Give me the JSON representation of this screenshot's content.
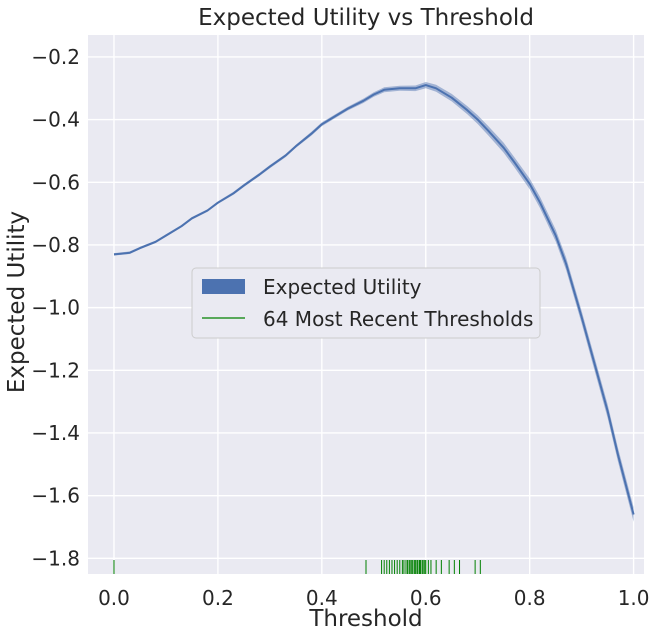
{
  "colors": {
    "plot_background": "#eaeaf2",
    "grid": "#ffffff",
    "line": "#4c72b0",
    "band": "#4c72b0",
    "rug": "#008000",
    "text": "#262626"
  },
  "chart_data": {
    "type": "line",
    "title": "Expected Utility vs Threshold",
    "xlabel": "Threshold",
    "ylabel": "Expected Utility",
    "xlim": [
      -0.05,
      1.02
    ],
    "ylim": [
      -1.85,
      -0.13
    ],
    "grid": true,
    "legend_position": "center",
    "x_ticks": [
      0.0,
      0.2,
      0.4,
      0.6,
      0.8,
      1.0
    ],
    "x_tick_labels": [
      "0.0",
      "0.2",
      "0.4",
      "0.6",
      "0.8",
      "1.0"
    ],
    "y_ticks": [
      -0.2,
      -0.4,
      -0.6,
      -0.8,
      -1.0,
      -1.2,
      -1.4,
      -1.6,
      -1.8
    ],
    "y_tick_labels": [
      "−0.2",
      "−0.4",
      "−0.6",
      "−0.8",
      "−1.0",
      "−1.2",
      "−1.4",
      "−1.6",
      "−1.8"
    ],
    "series": [
      {
        "name": "Expected Utility",
        "kind": "line_with_band",
        "x": [
          0.0,
          0.03,
          0.05,
          0.08,
          0.1,
          0.13,
          0.15,
          0.18,
          0.2,
          0.23,
          0.25,
          0.28,
          0.3,
          0.33,
          0.35,
          0.38,
          0.4,
          0.43,
          0.45,
          0.48,
          0.5,
          0.52,
          0.55,
          0.58,
          0.6,
          0.62,
          0.65,
          0.68,
          0.7,
          0.72,
          0.75,
          0.77,
          0.8,
          0.82,
          0.85,
          0.87,
          0.9,
          0.92,
          0.95,
          0.97,
          1.0
        ],
        "y": [
          -0.83,
          -0.825,
          -0.81,
          -0.79,
          -0.77,
          -0.74,
          -0.715,
          -0.69,
          -0.665,
          -0.635,
          -0.61,
          -0.575,
          -0.55,
          -0.515,
          -0.485,
          -0.445,
          -0.415,
          -0.385,
          -0.365,
          -0.34,
          -0.32,
          -0.305,
          -0.3,
          -0.3,
          -0.29,
          -0.3,
          -0.33,
          -0.37,
          -0.4,
          -0.435,
          -0.49,
          -0.535,
          -0.605,
          -0.665,
          -0.77,
          -0.86,
          -1.03,
          -1.15,
          -1.33,
          -1.47,
          -1.66
        ],
        "band_halfwidth": [
          0.004,
          0.004,
          0.004,
          0.004,
          0.004,
          0.004,
          0.004,
          0.004,
          0.004,
          0.005,
          0.005,
          0.005,
          0.005,
          0.005,
          0.005,
          0.006,
          0.006,
          0.006,
          0.006,
          0.007,
          0.007,
          0.008,
          0.008,
          0.009,
          0.01,
          0.011,
          0.012,
          0.013,
          0.014,
          0.015,
          0.016,
          0.016,
          0.017,
          0.018,
          0.019,
          0.02,
          0.02,
          0.021,
          0.022,
          0.022,
          0.023
        ]
      },
      {
        "name": "64 Most Recent Thresholds",
        "kind": "rug",
        "x": [
          0.0,
          0.485,
          0.515,
          0.52,
          0.525,
          0.53,
          0.535,
          0.54,
          0.545,
          0.55,
          0.555,
          0.558,
          0.562,
          0.565,
          0.568,
          0.57,
          0.573,
          0.575,
          0.578,
          0.58,
          0.583,
          0.585,
          0.588,
          0.59,
          0.593,
          0.595,
          0.598,
          0.6,
          0.605,
          0.61,
          0.62,
          0.63,
          0.645,
          0.655,
          0.665,
          0.695,
          0.705
        ]
      }
    ]
  }
}
